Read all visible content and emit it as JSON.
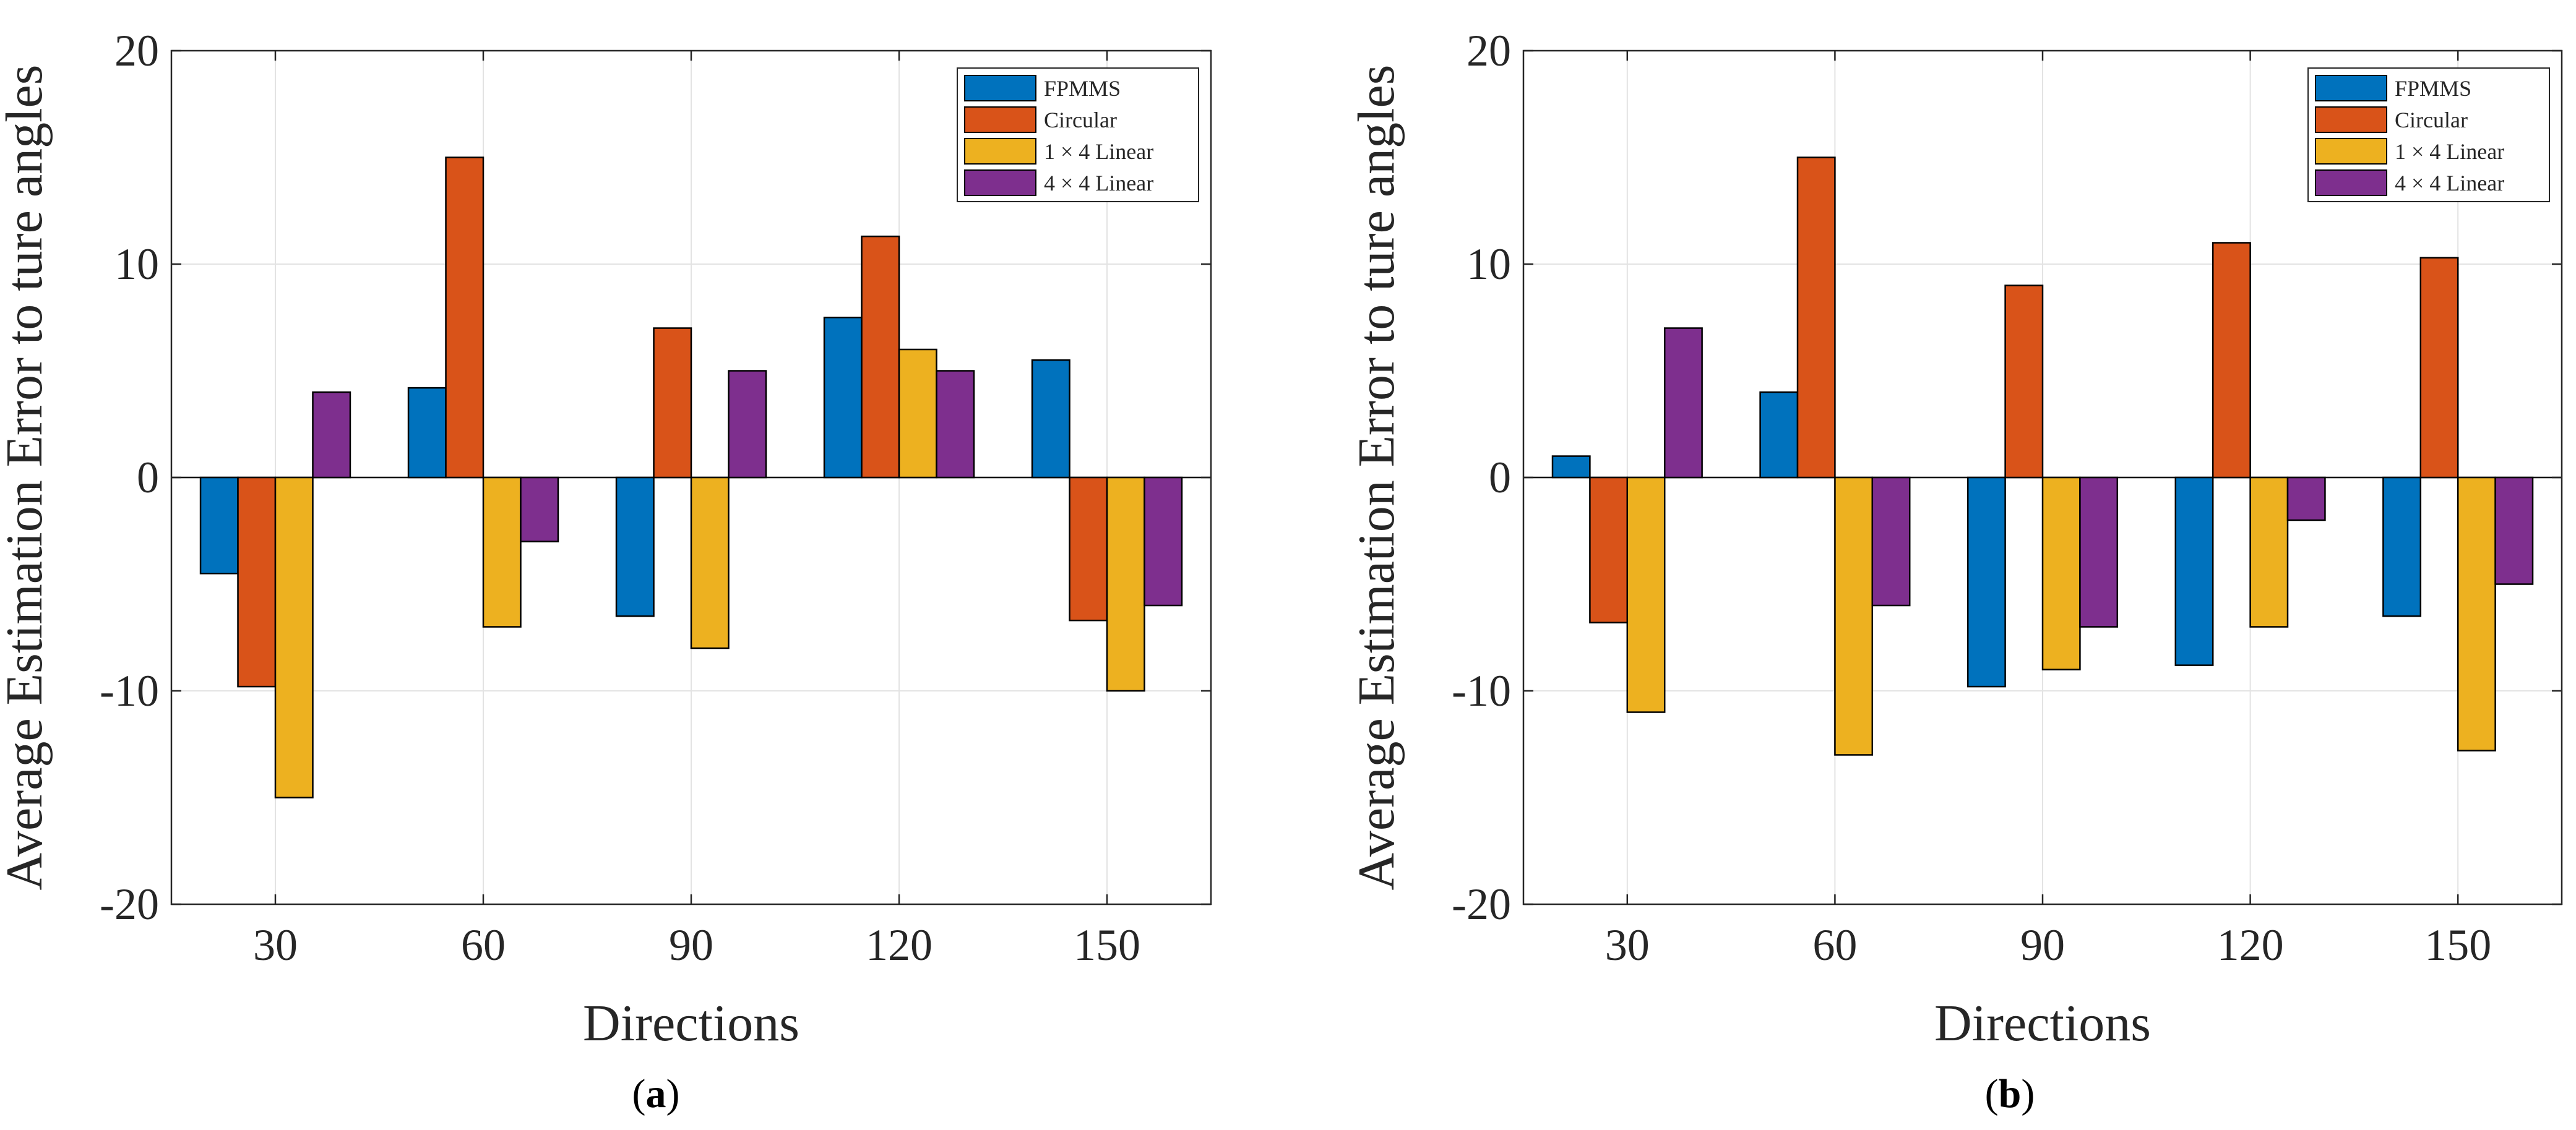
{
  "chart_data": [
    {
      "type": "bar",
      "categories": [
        "30",
        "60",
        "90",
        "120",
        "150"
      ],
      "series": [
        {
          "name": "FPMMS",
          "color": "#0072BD",
          "values": [
            -4.5,
            4.2,
            -6.5,
            7.5,
            5.5
          ]
        },
        {
          "name": "Circular",
          "color": "#D95319",
          "values": [
            -9.8,
            15.0,
            7.0,
            11.3,
            -6.7
          ]
        },
        {
          "name": "1 × 4 Linear",
          "color": "#EDB120",
          "values": [
            -15.0,
            -7.0,
            -8.0,
            6.0,
            -10.0
          ]
        },
        {
          "name": "4 × 4 Linear",
          "color": "#7E2F8E",
          "values": [
            4.0,
            -3.0,
            5.0,
            5.0,
            -6.0
          ]
        }
      ],
      "title": "",
      "xlabel": "Directions",
      "ylabel": "Average Estimation Error to ture angles",
      "ylim": [
        -20,
        20
      ],
      "yticks": [
        "-20",
        "-10",
        "0",
        "10",
        "20"
      ],
      "grid": true,
      "legend_position": "top-right",
      "subfigure_label": "a"
    },
    {
      "type": "bar",
      "categories": [
        "30",
        "60",
        "90",
        "120",
        "150"
      ],
      "series": [
        {
          "name": "FPMMS",
          "color": "#0072BD",
          "values": [
            1.0,
            4.0,
            -9.8,
            -8.8,
            -6.5
          ]
        },
        {
          "name": "Circular",
          "color": "#D95319",
          "values": [
            -6.8,
            15.0,
            9.0,
            11.0,
            10.3
          ]
        },
        {
          "name": "1 × 4 Linear",
          "color": "#EDB120",
          "values": [
            -11.0,
            -13.0,
            -9.0,
            -7.0,
            -12.8
          ]
        },
        {
          "name": "4 × 4 Linear",
          "color": "#7E2F8E",
          "values": [
            7.0,
            -6.0,
            -7.0,
            -2.0,
            -5.0
          ]
        }
      ],
      "title": "",
      "xlabel": "Directions",
      "ylabel": "Average Estimation Error to ture angles",
      "ylim": [
        -20,
        20
      ],
      "yticks": [
        "-20",
        "-10",
        "0",
        "10",
        "20"
      ],
      "grid": true,
      "legend_position": "top-right",
      "subfigure_label": "b"
    }
  ]
}
